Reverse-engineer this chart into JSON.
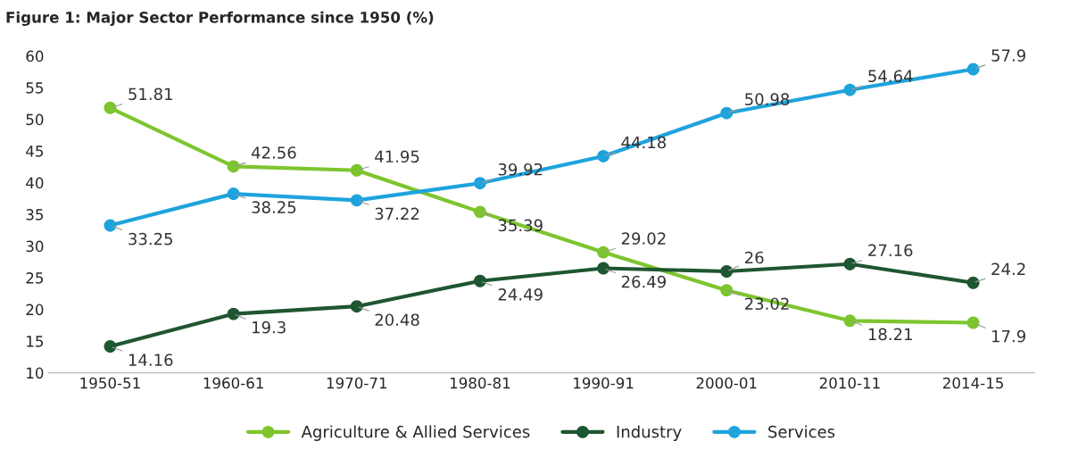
{
  "chart_data": {
    "type": "line",
    "title": "Figure 1: Major Sector Performance since 1950 (%)",
    "categories": [
      "1950-51",
      "1960-61",
      "1970-71",
      "1980-81",
      "1990-91",
      "2000-01",
      "2010-11",
      "2014-15"
    ],
    "series": [
      {
        "name": "Agriculture & Allied Services",
        "color": "#7dc52e",
        "values": [
          51.81,
          42.56,
          41.95,
          35.39,
          29.02,
          23.02,
          18.21,
          17.9
        ]
      },
      {
        "name": "Industry",
        "color": "#1e5631",
        "values": [
          14.16,
          19.3,
          20.48,
          24.49,
          26.49,
          26,
          27.16,
          24.2
        ]
      },
      {
        "name": "Services",
        "color": "#1fa3dc",
        "values": [
          33.25,
          38.25,
          37.22,
          39.92,
          44.18,
          50.98,
          54.64,
          57.9
        ]
      }
    ],
    "ylim": [
      10,
      60
    ],
    "yticks": [
      10,
      15,
      20,
      25,
      30,
      35,
      40,
      45,
      50,
      55,
      60
    ],
    "grid": false,
    "legend": "bottom",
    "marker": "circle",
    "line_style": "solid",
    "data_labels": true
  }
}
